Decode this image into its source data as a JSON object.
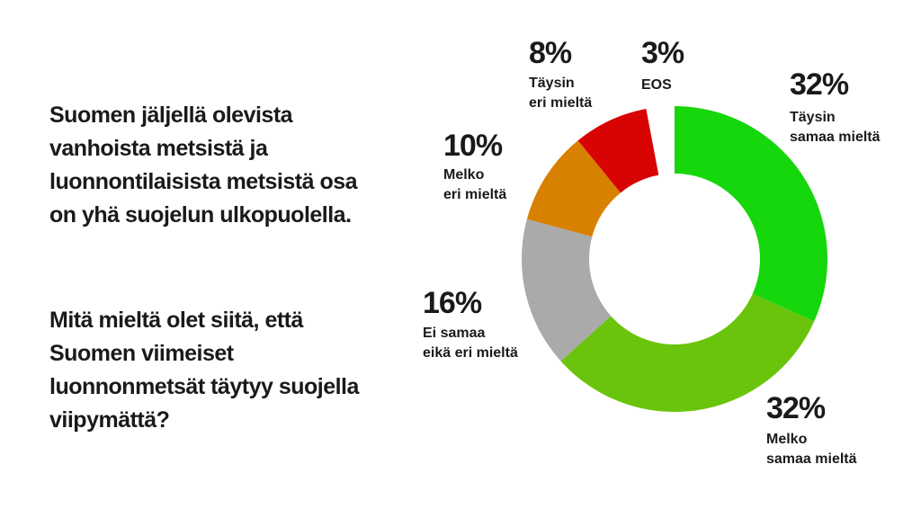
{
  "chart_data": {
    "type": "donut",
    "title": "Suomen jäljellä olevista vanhoista metsistä ja luonnontilaisista metsistä osa on yhä suojelun ulkopuolella.",
    "subtitle": "Mitä mieltä olet siitä, että Suomen viimeiset luonnonmetsät täytyy suojella viipymättä?",
    "categories": [
      "Täysin\nsamaa mieltä",
      "Melko\nsamaa mieltä",
      "Ei samaa\neikä eri mieltä",
      "Melko\neri mieltä",
      "Täysin\neri mieltä",
      "EOS"
    ],
    "values": [
      32,
      32,
      16,
      10,
      8,
      3
    ],
    "value_labels": [
      "32%",
      "32%",
      "16%",
      "10%",
      "8%",
      "3%"
    ],
    "colors": [
      "#16d60c",
      "#6ac40c",
      "#aaaaaa",
      "#d88000",
      "#d80404",
      "#ffffff"
    ]
  }
}
